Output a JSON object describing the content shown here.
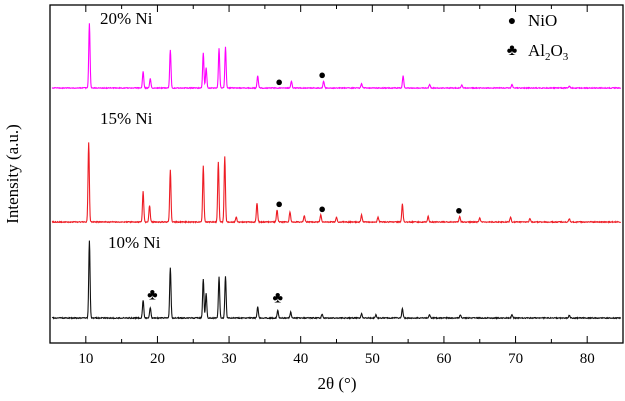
{
  "chart_data": {
    "type": "line",
    "xlabel": "2θ (°)",
    "ylabel": "Intensity (a.u.)",
    "xlim": [
      5,
      85
    ],
    "x_ticks": [
      10,
      20,
      30,
      40,
      50,
      60,
      70,
      80
    ],
    "y_ticks_shown": false,
    "grid": false,
    "legend_position": "top-right",
    "legend": [
      {
        "marker": "●",
        "label": "NiO"
      },
      {
        "marker": "♣",
        "label_base": "Al",
        "sub1": "2",
        "label_mid": "O",
        "sub2": "3"
      }
    ],
    "series": [
      {
        "name": "20% Ni",
        "color": "#ff00ff",
        "peaks": [
          {
            "x": 10.5,
            "h": 0.95
          },
          {
            "x": 18.0,
            "h": 0.24
          },
          {
            "x": 19.0,
            "h": 0.14
          },
          {
            "x": 21.8,
            "h": 0.56
          },
          {
            "x": 26.4,
            "h": 0.52
          },
          {
            "x": 26.8,
            "h": 0.3
          },
          {
            "x": 28.6,
            "h": 0.58
          },
          {
            "x": 29.5,
            "h": 0.6
          },
          {
            "x": 34.0,
            "h": 0.18
          },
          {
            "x": 38.7,
            "h": 0.1
          },
          {
            "x": 43.2,
            "h": 0.1
          },
          {
            "x": 48.5,
            "h": 0.06
          },
          {
            "x": 54.3,
            "h": 0.18
          },
          {
            "x": 58.0,
            "h": 0.05
          },
          {
            "x": 62.5,
            "h": 0.04
          },
          {
            "x": 69.5,
            "h": 0.05
          },
          {
            "x": 77.5,
            "h": 0.03
          }
        ],
        "markers": [
          {
            "x": 37.0,
            "symbol": "●"
          },
          {
            "x": 43.0,
            "symbol": "●"
          }
        ]
      },
      {
        "name": "15% Ni",
        "color": "#ee1c24",
        "peaks": [
          {
            "x": 10.4,
            "h": 1.0
          },
          {
            "x": 18.0,
            "h": 0.38
          },
          {
            "x": 18.9,
            "h": 0.21
          },
          {
            "x": 21.8,
            "h": 0.65
          },
          {
            "x": 26.4,
            "h": 0.7
          },
          {
            "x": 28.5,
            "h": 0.75
          },
          {
            "x": 29.4,
            "h": 0.82
          },
          {
            "x": 31.0,
            "h": 0.06
          },
          {
            "x": 33.9,
            "h": 0.24
          },
          {
            "x": 36.7,
            "h": 0.15
          },
          {
            "x": 38.5,
            "h": 0.13
          },
          {
            "x": 40.5,
            "h": 0.08
          },
          {
            "x": 42.8,
            "h": 0.09
          },
          {
            "x": 45.0,
            "h": 0.06
          },
          {
            "x": 48.5,
            "h": 0.09
          },
          {
            "x": 50.8,
            "h": 0.06
          },
          {
            "x": 54.2,
            "h": 0.23
          },
          {
            "x": 57.8,
            "h": 0.07
          },
          {
            "x": 62.2,
            "h": 0.07
          },
          {
            "x": 65.0,
            "h": 0.05
          },
          {
            "x": 69.3,
            "h": 0.06
          },
          {
            "x": 72.0,
            "h": 0.04
          },
          {
            "x": 77.5,
            "h": 0.04
          }
        ],
        "markers": [
          {
            "x": 37.0,
            "symbol": "●"
          },
          {
            "x": 43.0,
            "symbol": "●"
          },
          {
            "x": 62.1,
            "symbol": "●"
          }
        ]
      },
      {
        "name": "10% Ni",
        "color": "#111111",
        "peaks": [
          {
            "x": 10.5,
            "h": 0.95
          },
          {
            "x": 18.0,
            "h": 0.22
          },
          {
            "x": 19.0,
            "h": 0.13
          },
          {
            "x": 21.8,
            "h": 0.62
          },
          {
            "x": 26.4,
            "h": 0.48
          },
          {
            "x": 26.8,
            "h": 0.3
          },
          {
            "x": 28.6,
            "h": 0.5
          },
          {
            "x": 29.5,
            "h": 0.51
          },
          {
            "x": 34.0,
            "h": 0.14
          },
          {
            "x": 36.8,
            "h": 0.09
          },
          {
            "x": 38.6,
            "h": 0.07
          },
          {
            "x": 43.0,
            "h": 0.05
          },
          {
            "x": 48.5,
            "h": 0.05
          },
          {
            "x": 50.5,
            "h": 0.04
          },
          {
            "x": 54.2,
            "h": 0.12
          },
          {
            "x": 58.0,
            "h": 0.04
          },
          {
            "x": 62.3,
            "h": 0.04
          },
          {
            "x": 69.5,
            "h": 0.04
          },
          {
            "x": 77.5,
            "h": 0.03
          }
        ],
        "markers": [
          {
            "x": 19.3,
            "symbol": "♣"
          },
          {
            "x": 36.8,
            "symbol": "♣"
          }
        ]
      }
    ]
  }
}
